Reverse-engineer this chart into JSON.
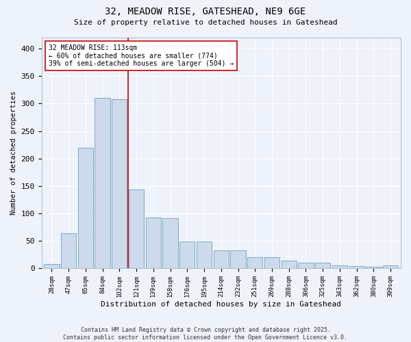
{
  "title_line1": "32, MEADOW RISE, GATESHEAD, NE9 6GE",
  "title_line2": "Size of property relative to detached houses in Gateshead",
  "xlabel": "Distribution of detached houses by size in Gateshead",
  "ylabel": "Number of detached properties",
  "categories": [
    "28sqm",
    "47sqm",
    "65sqm",
    "84sqm",
    "102sqm",
    "121sqm",
    "139sqm",
    "158sqm",
    "176sqm",
    "195sqm",
    "214sqm",
    "232sqm",
    "251sqm",
    "269sqm",
    "288sqm",
    "306sqm",
    "325sqm",
    "343sqm",
    "362sqm",
    "380sqm",
    "399sqm"
  ],
  "values": [
    8,
    64,
    220,
    310,
    308,
    144,
    93,
    92,
    49,
    49,
    33,
    33,
    21,
    21,
    14,
    11,
    10,
    5,
    4,
    3,
    5
  ],
  "bar_color": "#ccdaeb",
  "bar_edge_color": "#7aaac8",
  "vline_x_index": 5,
  "vline_color": "#cc0000",
  "annotation_text": "32 MEADOW RISE: 113sqm\n← 60% of detached houses are smaller (774)\n39% of semi-detached houses are larger (504) →",
  "annotation_box_color": "#ffffff",
  "annotation_box_edge": "#cc0000",
  "ylim": [
    0,
    420
  ],
  "yticks": [
    0,
    50,
    100,
    150,
    200,
    250,
    300,
    350,
    400
  ],
  "background_color": "#eef2fa",
  "grid_color": "#ffffff",
  "footer_line1": "Contains HM Land Registry data © Crown copyright and database right 2025.",
  "footer_line2": "Contains public sector information licensed under the Open Government Licence v3.0."
}
